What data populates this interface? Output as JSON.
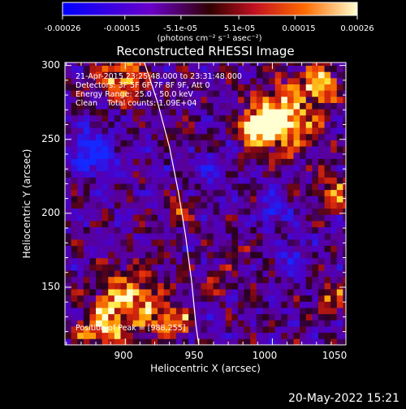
{
  "colorbar": {
    "ticks": [
      "-0.00026",
      "-0.00015",
      "-5.1e-05",
      "5.1e-05",
      "0.00015",
      "0.00026"
    ],
    "tick_values": [
      -0.00026,
      -0.00015,
      -5.1e-05,
      5.1e-05,
      0.00015,
      0.00026
    ],
    "range": [
      -0.00026,
      0.00026
    ],
    "unit_label": "(photons cm⁻² s⁻¹ asec⁻²)",
    "colors": [
      "#0000ff",
      "#6a00c8",
      "#c01020",
      "#ff6a00",
      "#ffff80"
    ]
  },
  "chart_data": {
    "type": "heatmap",
    "title": "Reconstructed RHESSI Image",
    "xlabel": "Heliocentric X (arcsec)",
    "ylabel": "Heliocentric Y (arcsec)",
    "xlim": [
      859,
      1050
    ],
    "ylim": [
      111,
      302
    ],
    "xticks": [
      900,
      950,
      1000,
      1050
    ],
    "yticks": [
      150,
      200,
      250,
      300
    ],
    "annotations": {
      "time_range": "21-Apr-2015 23:25:48.000 to 23:31:48.000",
      "detectors": "Detectors: 3F 5F 6F 7F 8F 9F, Att 0",
      "energy": "Energy Range: 25.0 - 50.0 keV",
      "clean": "Clean    Total counts: 1.09E+04",
      "peak": "Position of Peak = [988,255]"
    },
    "peak_position": [
      988,
      255
    ],
    "limb_curve": [
      [
        913,
        302
      ],
      [
        922,
        275
      ],
      [
        930,
        245
      ],
      [
        936,
        215
      ],
      [
        941,
        185
      ],
      [
        945,
        155
      ],
      [
        948,
        125
      ],
      [
        950,
        111
      ]
    ],
    "bright_regions": [
      {
        "x": 1005,
        "y": 262,
        "intensity": 1.0,
        "radius": 22
      },
      {
        "x": 988,
        "y": 255,
        "intensity": 1.0,
        "radius": 12
      },
      {
        "x": 1030,
        "y": 285,
        "intensity": 0.8,
        "radius": 14
      },
      {
        "x": 1040,
        "y": 210,
        "intensity": 0.7,
        "radius": 12
      },
      {
        "x": 900,
        "y": 140,
        "intensity": 0.95,
        "radius": 22
      },
      {
        "x": 880,
        "y": 120,
        "intensity": 0.9,
        "radius": 14
      },
      {
        "x": 930,
        "y": 125,
        "intensity": 0.75,
        "radius": 12
      },
      {
        "x": 895,
        "y": 290,
        "intensity": 0.75,
        "radius": 18
      },
      {
        "x": 935,
        "y": 200,
        "intensity": 0.5,
        "radius": 10
      },
      {
        "x": 960,
        "y": 150,
        "intensity": 0.4,
        "radius": 9
      },
      {
        "x": 1040,
        "y": 140,
        "intensity": 0.55,
        "radius": 11
      },
      {
        "x": 975,
        "y": 170,
        "intensity": 0.35,
        "radius": 8
      }
    ],
    "dim_regions": [
      {
        "x": 875,
        "y": 240,
        "intensity": -0.8,
        "radius": 15
      },
      {
        "x": 1000,
        "y": 200,
        "intensity": -0.5,
        "radius": 10
      },
      {
        "x": 1010,
        "y": 170,
        "intensity": -0.5,
        "radius": 10
      },
      {
        "x": 960,
        "y": 230,
        "intensity": -0.4,
        "radius": 9
      }
    ]
  },
  "timestamp": "20-May-2022 15:21"
}
